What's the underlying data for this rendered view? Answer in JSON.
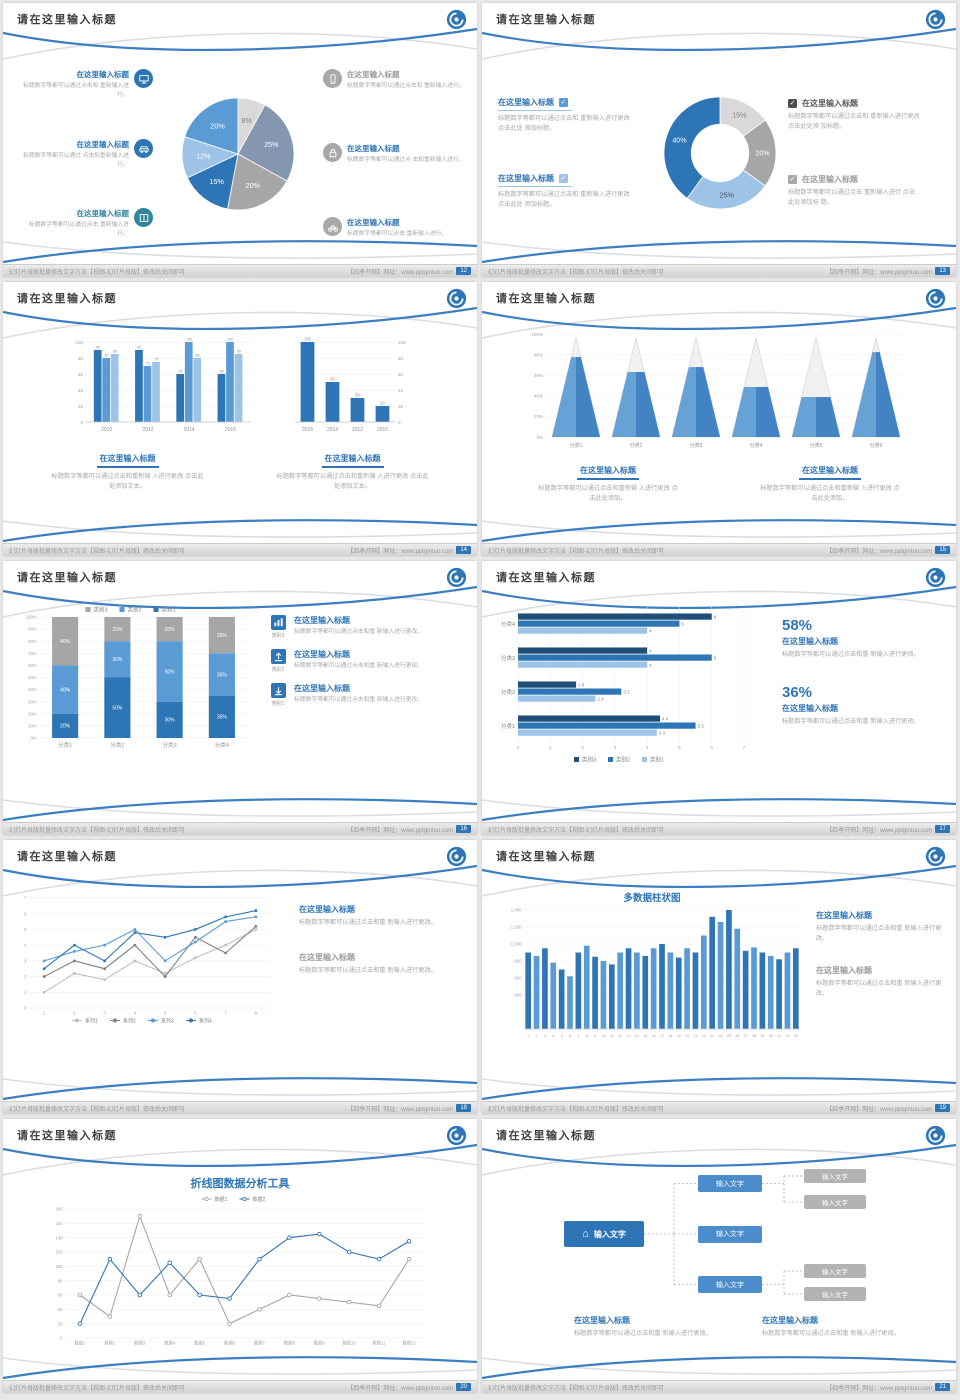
{
  "page": {
    "bg": "#e8e8e8"
  },
  "common": {
    "slide_title": "请在这里输入标题",
    "footer_left": "幻灯片母版批量修改文字方法【视图-幻灯片母版】修改后关闭即可",
    "footer_right": "【四季开网】网址：www.pptgintuo.com"
  },
  "colors": {
    "primary": "#2e75b6",
    "mid_blue": "#5b9bd5",
    "light_blue": "#9dc3e6",
    "gray": "#a6a6a6",
    "light_gray": "#d9d9d9"
  },
  "slides": [
    {
      "page_no": "12",
      "chart_data": {
        "type": "pie",
        "values": [
          8,
          25,
          20,
          15,
          12,
          20
        ],
        "labels": [
          "8%",
          "25%",
          "20%",
          "15%",
          "12%",
          "20%"
        ],
        "colors": [
          "#d9d9d9",
          "#8496b0",
          "#a6a6a6",
          "#2e75b6",
          "#9dc3e6",
          "#5b9bd5"
        ],
        "label_colors": [
          "#7f7f7f",
          "#ffffff",
          "#ffffff",
          "#ffffff",
          "#ffffff",
          "#ffffff"
        ]
      },
      "left_items": [
        {
          "icon": "monitor-icon",
          "title": "在这里输入标题",
          "desc": "标题数字等都可以通过点击和 重新输入进行。"
        },
        {
          "icon": "car-icon",
          "title": "在这里输入标题",
          "desc": "标题数字等都可以通过 点击和重新输入进行。"
        },
        {
          "icon": "book-icon",
          "title": "在这里输入标题",
          "desc": "标题数字等都可以通过点击 重新输入进行。"
        }
      ],
      "right_items": [
        {
          "icon": "phone-icon",
          "title": "在这里输入标题",
          "desc": "标题数字等都可以通过点击和 重新输入进行。"
        },
        {
          "icon": "lock-icon",
          "title": "在这里输入标题",
          "desc": "标题数字等都可以通过点 击和重新输入进行。"
        },
        {
          "icon": "bike-icon",
          "title": "在这里输入标题",
          "desc": "标题数字等都可以点击 重新输入进行。"
        }
      ]
    },
    {
      "page_no": "13",
      "chart_data": {
        "type": "pie",
        "donut": true,
        "values": [
          15,
          20,
          25,
          40
        ],
        "labels": [
          "15%",
          "20%",
          "25%",
          "40%"
        ],
        "colors": [
          "#d9d9d9",
          "#a6a6a6",
          "#9dc3e6",
          "#2e75b6"
        ],
        "label_colors": [
          "#7f7f7f",
          "#ffffff",
          "#44546a",
          "#ffffff"
        ]
      },
      "left_items": [
        {
          "title": "在这里输入标题",
          "desc": "标题数字等都可以通过点击和 重新输入进行更改 点击此处 添加标题。"
        },
        {
          "title": "在这里输入标题",
          "desc": "标题数字等都可以通过点击和 重新输入进行更改 点击此处 添加标题。"
        }
      ],
      "right_items": [
        {
          "title": "在这里输入标题",
          "desc": "标题数字等都可以通过点击和 重新输入进行更改 点击此处添 加标题。"
        },
        {
          "title": "在这里输入标题",
          "desc": "标题数字等都可以通过点击 重新输入进行 点击此处添加标 题。"
        }
      ]
    },
    {
      "page_no": "14",
      "chart_data": [
        {
          "type": "bar",
          "categories": [
            "2010",
            "2012",
            "2014",
            "2016"
          ],
          "series": [
            {
              "name": "系列1",
              "color": "#2e75b6",
              "values": [
                90,
                90,
                60,
                60
              ]
            },
            {
              "name": "系列2",
              "color": "#5b9bd5",
              "values": [
                80,
                70,
                100,
                100
              ]
            },
            {
              "name": "系列3",
              "color": "#9dc3e6",
              "values": [
                85,
                75,
                80,
                85
              ]
            }
          ],
          "ylim": [
            0,
            100
          ],
          "yticks": [
            0,
            20,
            40,
            60,
            80,
            100
          ]
        },
        {
          "type": "bar",
          "categories": [
            "2016",
            "2014",
            "2012",
            "2010"
          ],
          "values": [
            100,
            50,
            30,
            20
          ],
          "color": "#2e75b6",
          "ylim": [
            0,
            100
          ],
          "yticks": [
            0,
            20,
            40,
            60,
            80,
            100
          ]
        }
      ],
      "blocks": [
        {
          "title": "在这里输入标题",
          "desc": "标题数字等都可以通过点击和重新输 入进行更改 点击此处添加文本。"
        },
        {
          "title": "在这里输入标题",
          "desc": "标题数字等都可以通过点击和重新输 入进行更改 点击此处添加文本。"
        }
      ]
    },
    {
      "page_no": "15",
      "chart_data": {
        "type": "pyramid",
        "categories": [
          "分类1",
          "分类2",
          "分类3",
          "分类4",
          "分类5",
          "分类6"
        ],
        "values": [
          80,
          65,
          70,
          50,
          40,
          85
        ],
        "yticks": [
          "0%",
          "20%",
          "40%",
          "60%",
          "80%",
          "100%"
        ]
      },
      "blocks": [
        {
          "title": "在这里输入标题",
          "desc": "标题数字等都可以通过点击和重新输 入进行更改 点击此处添加。"
        },
        {
          "title": "在这里输入标题",
          "desc": "标题数字等都可以通过点击和重新输 入进行更改 点击此处添加。"
        }
      ]
    },
    {
      "page_no": "16",
      "chart_data": {
        "type": "stacked_bar",
        "categories": [
          "分类1",
          "分类2",
          "分类3",
          "分类4"
        ],
        "series": [
          {
            "name": "类别1",
            "color": "#2e75b6",
            "values": [
              20,
              50,
              30,
              35
            ]
          },
          {
            "name": "类别2",
            "color": "#5b9bd5",
            "values": [
              40,
              30,
              50,
              35
            ]
          },
          {
            "name": "类别3",
            "color": "#a6a6a6",
            "values": [
              40,
              20,
              20,
              30
            ]
          }
        ],
        "legend": [
          {
            "name": "类别3",
            "color": "#a6a6a6"
          },
          {
            "name": "类别2",
            "color": "#5b9bd5"
          },
          {
            "name": "类别1",
            "color": "#2e75b6"
          }
        ],
        "yticks": [
          "0%",
          "10%",
          "20%",
          "30%",
          "40%",
          "50%",
          "60%",
          "70%",
          "80%",
          "90%",
          "100%"
        ]
      },
      "right_items": [
        {
          "icon": "bar-chart-icon",
          "icon_label": "类别3",
          "title": "在这里输入标题",
          "desc": "标题数字等都可以通过点击和重 新输入进行更改。"
        },
        {
          "icon": "upload-icon",
          "icon_label": "类别2",
          "title": "在这里输入标题",
          "desc": "标题数字等都可以通过点击和重 新输入进行更改。"
        },
        {
          "icon": "download-icon",
          "icon_label": "类别1",
          "title": "在这里输入标题",
          "desc": "标题数字等都可以通过点击和重 新输入进行更改。"
        }
      ]
    },
    {
      "page_no": "17",
      "chart_data": {
        "type": "bar_horizontal",
        "categories": [
          "分类4",
          "分类3",
          "分类2",
          "分类1"
        ],
        "series": [
          {
            "name": "类别3",
            "color": "#1f4e79",
            "values": [
              6,
              4,
              1.8,
              4.4
            ]
          },
          {
            "name": "类别2",
            "color": "#2e75b6",
            "values": [
              5,
              6,
              3.2,
              5.5
            ]
          },
          {
            "name": "类别1",
            "color": "#9dc3e6",
            "values": [
              4,
              4,
              2.4,
              4.3
            ]
          }
        ],
        "legend": [
          {
            "name": "类别3",
            "color": "#1f4e79"
          },
          {
            "name": "类别2",
            "color": "#2e75b6"
          },
          {
            "name": "类别1",
            "color": "#9dc3e6"
          }
        ],
        "xlim": [
          0,
          7
        ],
        "xticks": [
          0,
          1,
          2,
          3,
          4,
          5,
          6,
          7
        ]
      },
      "stats": [
        {
          "value": "58%",
          "title": "在这里输入标题",
          "desc": "标题数字等都可以通过点击和重 新输入进行更改。"
        },
        {
          "value": "36%",
          "title": "在这里输入标题",
          "desc": "标题数字等都可以通过点击和重 新输入进行更改。"
        }
      ]
    },
    {
      "page_no": "18",
      "chart_data": {
        "type": "line",
        "x": [
          1,
          2,
          3,
          4,
          5,
          6,
          7,
          8
        ],
        "ylim": [
          0,
          7
        ],
        "ytick_values": [
          0,
          1,
          2,
          3,
          4,
          5,
          6,
          7
        ],
        "series": [
          {
            "name": "系列1",
            "color": "#bfbfbf",
            "values": [
              1.0,
              2.2,
              1.8,
              3.0,
              2.2,
              3.2,
              4.0,
              5.0
            ]
          },
          {
            "name": "系列2",
            "color": "#7f7f7f",
            "values": [
              2.0,
              3.0,
              2.5,
              4.0,
              2.0,
              4.5,
              3.5,
              5.2
            ]
          },
          {
            "name": "系列3",
            "color": "#5b9bd5",
            "values": [
              3.0,
              3.6,
              4.0,
              5.0,
              3.0,
              4.2,
              5.5,
              5.8
            ]
          },
          {
            "name": "系列4",
            "color": "#2e75b6",
            "values": [
              2.5,
              4.0,
              3.0,
              4.8,
              4.5,
              5.0,
              5.8,
              6.2
            ]
          }
        ]
      },
      "blocks": [
        {
          "title": "在这里输入标题",
          "desc": "标题数字等都可以通过点击和重 新输入进行更改。"
        },
        {
          "title": "在这里输入标题",
          "desc": "标题数字等都可以通过点击和重 新输入进行更改。"
        }
      ]
    },
    {
      "page_no": "19",
      "chart_title": "多数据柱状图",
      "chart_data": {
        "type": "bar",
        "x_labels": [
          "1",
          "2",
          "3",
          "4",
          "5",
          "6",
          "7",
          "8",
          "9",
          "10",
          "11",
          "12",
          "13",
          "14",
          "15",
          "16",
          "17",
          "18",
          "19",
          "20",
          "21",
          "22",
          "23",
          "24",
          "25",
          "26",
          "27",
          "28",
          "29",
          "30",
          "31",
          "32",
          "33"
        ],
        "values": [
          900,
          860,
          950,
          780,
          700,
          620,
          900,
          980,
          850,
          800,
          760,
          900,
          950,
          900,
          860,
          950,
          1000,
          900,
          840,
          950,
          900,
          1100,
          1320,
          1260,
          1400,
          1180,
          920,
          960,
          900,
          860,
          820,
          900,
          950
        ],
        "ylim": [
          0,
          1400
        ],
        "ytick_values": [
          400,
          600,
          800,
          1000,
          1200,
          1400
        ],
        "ytick_labels": [
          "400",
          "600",
          "800",
          "1,000",
          "1,200",
          "1,400"
        ],
        "colors": [
          "#2e75b6",
          "#5b9bd5"
        ]
      },
      "blocks": [
        {
          "title": "在这里输入标题",
          "desc": "标题数字等都可以通过点击和重 新输入进行更改。"
        },
        {
          "title": "在这里输入标题",
          "desc": "标题数字等都可以通过点击和重 新输入进行更改。"
        }
      ]
    },
    {
      "page_no": "20",
      "chart_title": "折线图数据分析工具",
      "chart_data": {
        "type": "line",
        "categories": [
          "数据1",
          "数据2",
          "数据3",
          "数据4",
          "数据5",
          "数据6",
          "数据7",
          "数据8",
          "数据9",
          "数据10",
          "数据11",
          "数据12"
        ],
        "ylim": [
          0,
          180
        ],
        "ytick_values": [
          0,
          20,
          40,
          60,
          80,
          100,
          120,
          140,
          160,
          180
        ],
        "series": [
          {
            "name": "数据1",
            "color": "#a6a6a6",
            "values": [
              60,
              30,
              170,
              60,
              110,
              20,
              40,
              60,
              55,
              50,
              45,
              110
            ]
          },
          {
            "name": "数据2",
            "color": "#2e75b6",
            "values": [
              20,
              110,
              60,
              105,
              60,
              55,
              110,
              140,
              145,
              120,
              110,
              135
            ]
          }
        ]
      }
    },
    {
      "page_no": "21",
      "flow": {
        "root": {
          "icon": "home-icon",
          "label": "输入文字"
        },
        "mid": [
          "输入文字",
          "输入文字",
          "输入文字"
        ],
        "leaves": [
          "输入文字",
          "输入文字",
          "输入文字",
          "输入文字"
        ]
      },
      "blocks": [
        {
          "title": "在这里输入标题",
          "desc": "标题数字等都可以通过点击和重 新输入进行更改。"
        },
        {
          "title": "在这里输入标题",
          "desc": "标题数字等都可以通过点击和重 新输入进行更改。"
        }
      ]
    }
  ]
}
